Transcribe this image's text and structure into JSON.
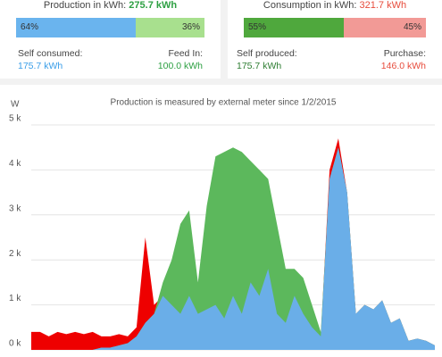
{
  "production": {
    "label": "Production in kWh:",
    "total": "275.7 kWh",
    "bar": [
      {
        "value": 64,
        "label": "64%"
      },
      {
        "value": 36,
        "label": "36%"
      }
    ],
    "left_label": "Self consumed:",
    "left_value": "175.7 kWh",
    "right_label": "Feed In:",
    "right_value": "100.0 kWh"
  },
  "consumption": {
    "label": "Consumption in kWh:",
    "total": "321.7 kWh",
    "bar": [
      {
        "value": 55,
        "label": "55%"
      },
      {
        "value": 45,
        "label": "45%"
      }
    ],
    "left_label": "Self produced:",
    "left_value": "175.7 kWh",
    "right_label": "Purchase:",
    "right_value": "146.0 kWh"
  },
  "chart_data": {
    "type": "area",
    "title": "Production is measured by external meter since 1/2/2015",
    "y_label": "W",
    "ylim": [
      0,
      5000
    ],
    "yticks": [
      {
        "value": 0,
        "label": "0 k"
      },
      {
        "value": 1000,
        "label": "1 k"
      },
      {
        "value": 2000,
        "label": "2 k"
      },
      {
        "value": 3000,
        "label": "3 k"
      },
      {
        "value": 4000,
        "label": "4 k"
      },
      {
        "value": 5000,
        "label": "5 k"
      }
    ],
    "grid": true,
    "series": [
      {
        "color": "#ee0000",
        "values": [
          400,
          400,
          300,
          400,
          350,
          400,
          350,
          400,
          300,
          300,
          350,
          300,
          500,
          2500,
          1000,
          1200,
          1000,
          800,
          1200,
          800,
          900,
          1000,
          700,
          1200,
          800,
          1500,
          1200,
          1800,
          800,
          600,
          1200,
          800,
          500,
          300,
          4000,
          4700,
          3500,
          800,
          1000,
          900,
          1100,
          600,
          700,
          200,
          250,
          200,
          100
        ]
      },
      {
        "color": "#5cb85c",
        "values": [
          0,
          0,
          0,
          0,
          0,
          0,
          0,
          0,
          50,
          50,
          100,
          150,
          300,
          600,
          800,
          1500,
          2000,
          2800,
          3100,
          1500,
          3200,
          4300,
          4400,
          4500,
          4400,
          4200,
          4000,
          3800,
          2800,
          1800,
          1800,
          1600,
          1000,
          400,
          3800,
          4500,
          3500,
          800,
          1000,
          900,
          1100,
          600,
          700,
          200,
          250,
          200,
          100
        ]
      }
    ],
    "overlap_color": "#6aaee8"
  }
}
